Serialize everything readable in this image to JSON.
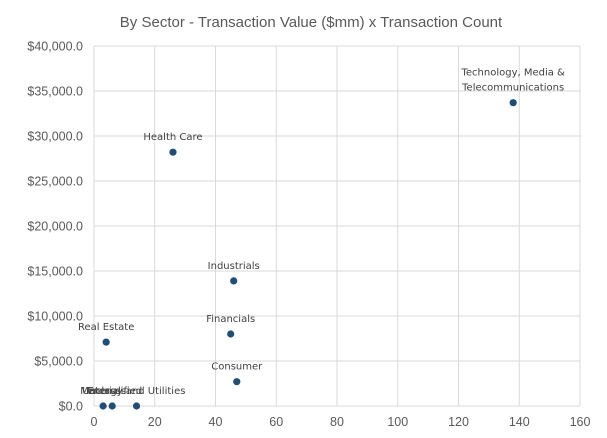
{
  "chart_data": {
    "type": "scatter",
    "title": "By Sector - Transaction Value ($mm) x Transaction Count",
    "xlabel": "",
    "ylabel": "",
    "xlim": [
      0,
      160
    ],
    "ylim": [
      0,
      40000
    ],
    "x_ticks": [
      0,
      20,
      40,
      60,
      80,
      100,
      120,
      140,
      160
    ],
    "y_ticks": [
      0,
      5000,
      10000,
      15000,
      20000,
      25000,
      30000,
      35000,
      40000
    ],
    "x_tick_labels": [
      "0",
      "20",
      "40",
      "60",
      "80",
      "100",
      "120",
      "140",
      "160"
    ],
    "y_tick_labels": [
      "$0.0",
      "$5,000.0",
      "$10,000.0",
      "$15,000.0",
      "$20,000.0",
      "$25,000.0",
      "$30,000.0",
      "$35,000.0",
      "$40,000.0"
    ],
    "grid": true,
    "marker_color": "#1f4e79",
    "points": [
      {
        "label": [
          "Technology, Media &",
          "Telecommunications"
        ],
        "x": 138,
        "y": 33700
      },
      {
        "label": [
          "Health Care"
        ],
        "x": 26,
        "y": 28200
      },
      {
        "label": [
          "Industrials"
        ],
        "x": 46,
        "y": 13900
      },
      {
        "label": [
          "Financials"
        ],
        "x": 45,
        "y": 8000
      },
      {
        "label": [
          "Real Estate"
        ],
        "x": 4,
        "y": 7100
      },
      {
        "label": [
          "Consumer"
        ],
        "x": 47,
        "y": 2700
      },
      {
        "label": [
          "Energy and Utilities"
        ],
        "x": 14,
        "y": 0
      },
      {
        "label": [
          "Unclassified"
        ],
        "x": 6,
        "y": 0
      },
      {
        "label": [
          "Materials"
        ],
        "x": 3,
        "y": 0
      }
    ]
  }
}
